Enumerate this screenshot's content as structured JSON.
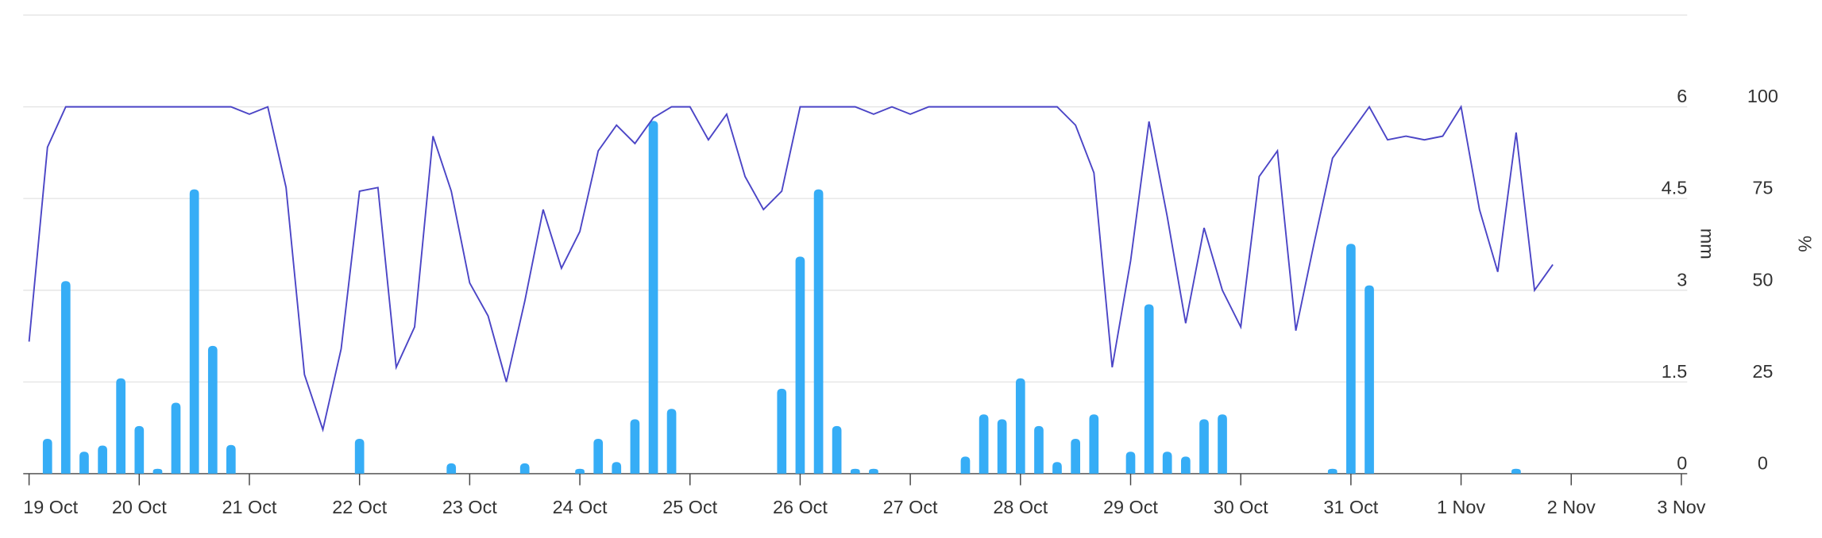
{
  "chart_data": {
    "type": "bar_line",
    "x": [
      0,
      0.167,
      0.333,
      0.5,
      0.667,
      0.833,
      1,
      1.167,
      1.333,
      1.5,
      1.667,
      1.833,
      2,
      2.167,
      2.333,
      2.5,
      2.667,
      2.833,
      3,
      3.167,
      3.333,
      3.5,
      3.667,
      3.833,
      4,
      4.167,
      4.333,
      4.5,
      4.667,
      4.833,
      5,
      5.167,
      5.333,
      5.5,
      5.667,
      5.833,
      6,
      6.167,
      6.333,
      6.5,
      6.667,
      6.833,
      7,
      7.167,
      7.333,
      7.5,
      7.667,
      7.833,
      8,
      8.167,
      8.333,
      8.5,
      8.667,
      8.833,
      9,
      9.167,
      9.333,
      9.5,
      9.667,
      9.833,
      10,
      10.167,
      10.333,
      10.5,
      10.667,
      10.833,
      11,
      11.167,
      11.333,
      11.5,
      11.667,
      11.833,
      12,
      12.167,
      12.333,
      12.5,
      12.667,
      12.833,
      13,
      13.167,
      13.333,
      13.5,
      13.667,
      13.833
    ],
    "series": [
      {
        "type": "bar",
        "color": "#36adf6",
        "values": [
          0,
          0.57,
          3.15,
          0.36,
          0.46,
          1.56,
          0.78,
          0.08,
          1.16,
          4.65,
          2.09,
          0.47,
          0,
          0,
          0,
          0,
          0,
          0,
          0.57,
          0,
          0,
          0,
          0,
          0.17,
          0,
          0,
          0,
          0.17,
          0,
          0,
          0.08,
          0.57,
          0.19,
          0.89,
          5.77,
          1.06,
          0,
          0,
          0,
          0,
          0,
          1.39,
          3.55,
          4.65,
          0.78,
          0.08,
          0.08,
          0,
          0,
          0,
          0,
          0.28,
          0.97,
          0.89,
          1.56,
          0.78,
          0.19,
          0.57,
          0.97,
          0,
          0.36,
          2.77,
          0.36,
          0.28,
          0.89,
          0.97,
          0,
          0,
          0,
          0,
          0,
          0.08,
          3.76,
          3.08,
          0,
          0,
          0,
          0,
          0,
          0,
          0,
          0.08,
          0,
          0
        ]
      },
      {
        "type": "line",
        "color": "#4b45c6",
        "axis": "y2",
        "values": [
          36,
          89,
          100,
          100,
          100,
          100,
          100,
          100,
          100,
          100,
          100,
          100,
          98,
          100,
          78,
          27,
          12,
          34,
          77,
          78,
          29,
          40,
          92,
          77,
          52,
          43,
          25,
          47,
          72,
          56,
          66,
          88,
          95,
          90,
          97,
          100,
          100,
          91,
          98,
          81,
          72,
          77,
          100,
          100,
          100,
          100,
          98,
          100,
          98,
          100,
          100,
          100,
          100,
          100,
          100,
          100,
          100,
          95,
          82,
          29,
          58,
          96,
          70,
          41,
          67,
          50,
          40,
          81,
          88,
          39,
          63,
          86,
          93,
          100,
          91,
          92,
          91,
          92,
          100,
          72,
          55,
          93,
          50,
          57
        ]
      }
    ],
    "xlim": [
      -0.053,
      15.053
    ],
    "xticks": [
      {
        "value": 0,
        "label": "19 Oct"
      },
      {
        "value": 1,
        "label": "20 Oct"
      },
      {
        "value": 2,
        "label": "21 Oct"
      },
      {
        "value": 3,
        "label": "22 Oct"
      },
      {
        "value": 4,
        "label": "23 Oct"
      },
      {
        "value": 5,
        "label": "24 Oct"
      },
      {
        "value": 6,
        "label": "25 Oct"
      },
      {
        "value": 7,
        "label": "26 Oct"
      },
      {
        "value": 8,
        "label": "27 Oct"
      },
      {
        "value": 9,
        "label": "28 Oct"
      },
      {
        "value": 10,
        "label": "29 Oct"
      },
      {
        "value": 11,
        "label": "30 Oct"
      },
      {
        "value": 12,
        "label": "31 Oct"
      },
      {
        "value": 13,
        "label": "1 Nov"
      },
      {
        "value": 14,
        "label": "2 Nov"
      },
      {
        "value": 15,
        "label": "3 Nov"
      }
    ],
    "ylabel": "mm",
    "ylim": [
      0,
      7.5
    ],
    "yticks": [
      0,
      1.5,
      3,
      4.5,
      6
    ],
    "y2label": "%",
    "y2lim": [
      0,
      125
    ],
    "y2ticks": [
      0,
      25,
      50,
      75,
      100
    ],
    "grid": true
  }
}
